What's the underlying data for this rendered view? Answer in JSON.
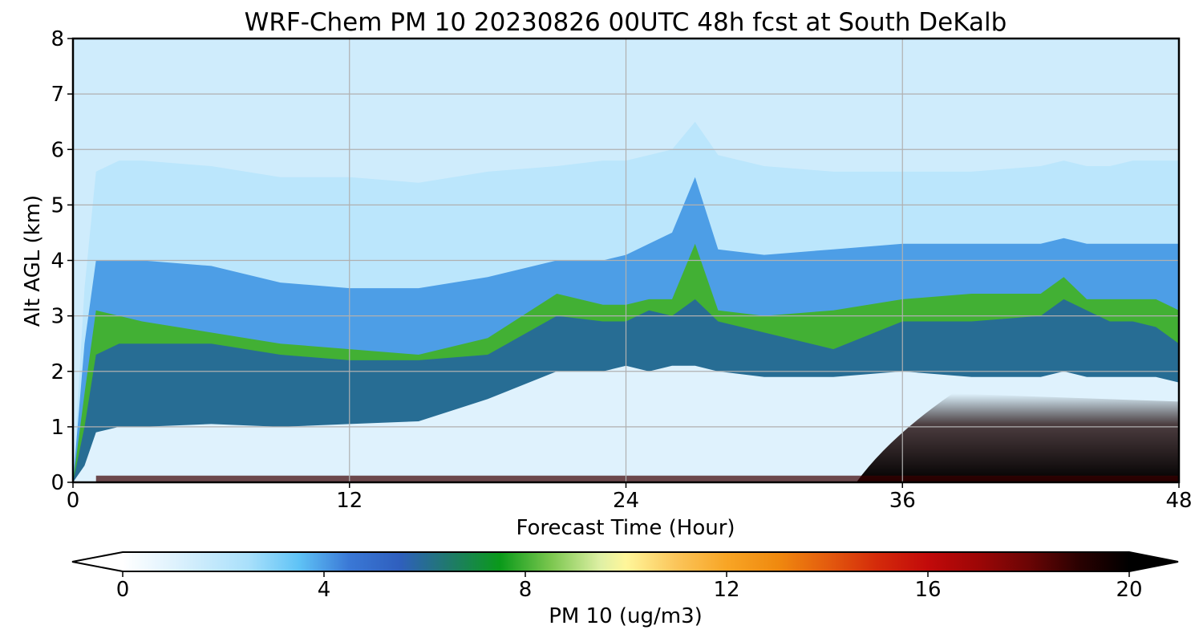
{
  "chart_data": {
    "type": "heatmap",
    "title": "WRF-Chem PM 10  20230826 00UTC 48h fcst at South DeKalb",
    "xlabel": "Forecast Time (Hour)",
    "ylabel": "Alt AGL (km)",
    "xlim": [
      0,
      48
    ],
    "ylim": [
      0,
      8
    ],
    "xticks": [
      0,
      12,
      24,
      36,
      48
    ],
    "yticks": [
      0,
      1,
      2,
      3,
      4,
      5,
      6,
      7,
      8
    ],
    "grid": true,
    "x_hours": [
      0,
      0.5,
      1,
      2,
      3,
      6,
      9,
      12,
      15,
      18,
      21,
      23,
      24,
      25,
      26,
      27,
      28,
      30,
      33,
      36,
      39,
      42,
      43,
      44,
      45,
      46,
      47,
      48
    ],
    "isolines_km": [
      {
        "level": 1,
        "values": [
          0,
          0.3,
          0.9,
          1.0,
          1.0,
          1.05,
          1.0,
          1.05,
          1.1,
          1.5,
          2.0,
          2.0,
          2.1,
          2.0,
          2.1,
          2.1,
          2.0,
          1.9,
          1.9,
          2.0,
          1.9,
          1.9,
          2.0,
          1.9,
          1.9,
          1.9,
          1.9,
          1.8
        ]
      },
      {
        "level": 6,
        "values": [
          0,
          1.0,
          2.3,
          2.5,
          2.5,
          2.5,
          2.3,
          2.2,
          2.2,
          2.3,
          3.0,
          2.9,
          2.9,
          3.1,
          3.0,
          3.3,
          2.9,
          2.7,
          2.4,
          2.9,
          2.9,
          3.0,
          3.3,
          3.1,
          2.9,
          2.9,
          2.8,
          2.5
        ]
      },
      {
        "level": 8,
        "values": [
          0,
          1.6,
          3.1,
          3.0,
          2.9,
          2.7,
          2.5,
          2.4,
          2.3,
          2.6,
          3.4,
          3.2,
          3.2,
          3.3,
          3.3,
          4.3,
          3.1,
          3.0,
          3.1,
          3.3,
          3.4,
          3.4,
          3.7,
          3.3,
          3.3,
          3.3,
          3.3,
          3.1
        ]
      },
      {
        "level": 4,
        "values": [
          0,
          2.5,
          4.0,
          4.0,
          4.0,
          3.9,
          3.6,
          3.5,
          3.5,
          3.7,
          4.0,
          4.0,
          4.1,
          4.3,
          4.5,
          5.5,
          4.2,
          4.1,
          4.2,
          4.3,
          4.3,
          4.3,
          4.4,
          4.3,
          4.3,
          4.3,
          4.3,
          4.3
        ]
      },
      {
        "level": 2,
        "values": [
          0,
          3.5,
          5.6,
          5.8,
          5.8,
          5.7,
          5.5,
          5.5,
          5.4,
          5.6,
          5.7,
          5.8,
          5.8,
          5.9,
          6.0,
          6.5,
          5.9,
          5.7,
          5.6,
          5.6,
          5.6,
          5.7,
          5.8,
          5.7,
          5.7,
          5.8,
          5.8,
          5.8
        ]
      }
    ],
    "core_max_region": {
      "x_range_hours": [
        34,
        48
      ],
      "y_range_km": [
        0,
        1.6
      ],
      "peak_value": 20
    },
    "colorbar": {
      "label": "PM 10  (ug/m3)",
      "min": 0,
      "max": 20,
      "ticks": [
        0,
        4,
        8,
        12,
        16,
        20
      ],
      "extend": "both",
      "stops": [
        {
          "value": 0,
          "color": "#ffffff"
        },
        {
          "value": 1,
          "color": "#dff2fd"
        },
        {
          "value": 2.5,
          "color": "#a9e0fb"
        },
        {
          "value": 3.5,
          "color": "#5fc3f6"
        },
        {
          "value": 4.5,
          "color": "#3a78d6"
        },
        {
          "value": 5.5,
          "color": "#2f5fbe"
        },
        {
          "value": 6.5,
          "color": "#1f7a6a"
        },
        {
          "value": 7.5,
          "color": "#0a9a1a"
        },
        {
          "value": 8.5,
          "color": "#7ac64e"
        },
        {
          "value": 9.5,
          "color": "#dff0a5"
        },
        {
          "value": 10,
          "color": "#fff69a"
        },
        {
          "value": 11,
          "color": "#fbc55a"
        },
        {
          "value": 12,
          "color": "#f8a525"
        },
        {
          "value": 13,
          "color": "#f08a0f"
        },
        {
          "value": 14,
          "color": "#e45c0e"
        },
        {
          "value": 15,
          "color": "#d42a0a"
        },
        {
          "value": 16,
          "color": "#c20a0a"
        },
        {
          "value": 17,
          "color": "#9d0606"
        },
        {
          "value": 18,
          "color": "#6b0505"
        },
        {
          "value": 19,
          "color": "#2a0101"
        },
        {
          "value": 20,
          "color": "#000000"
        }
      ]
    }
  }
}
